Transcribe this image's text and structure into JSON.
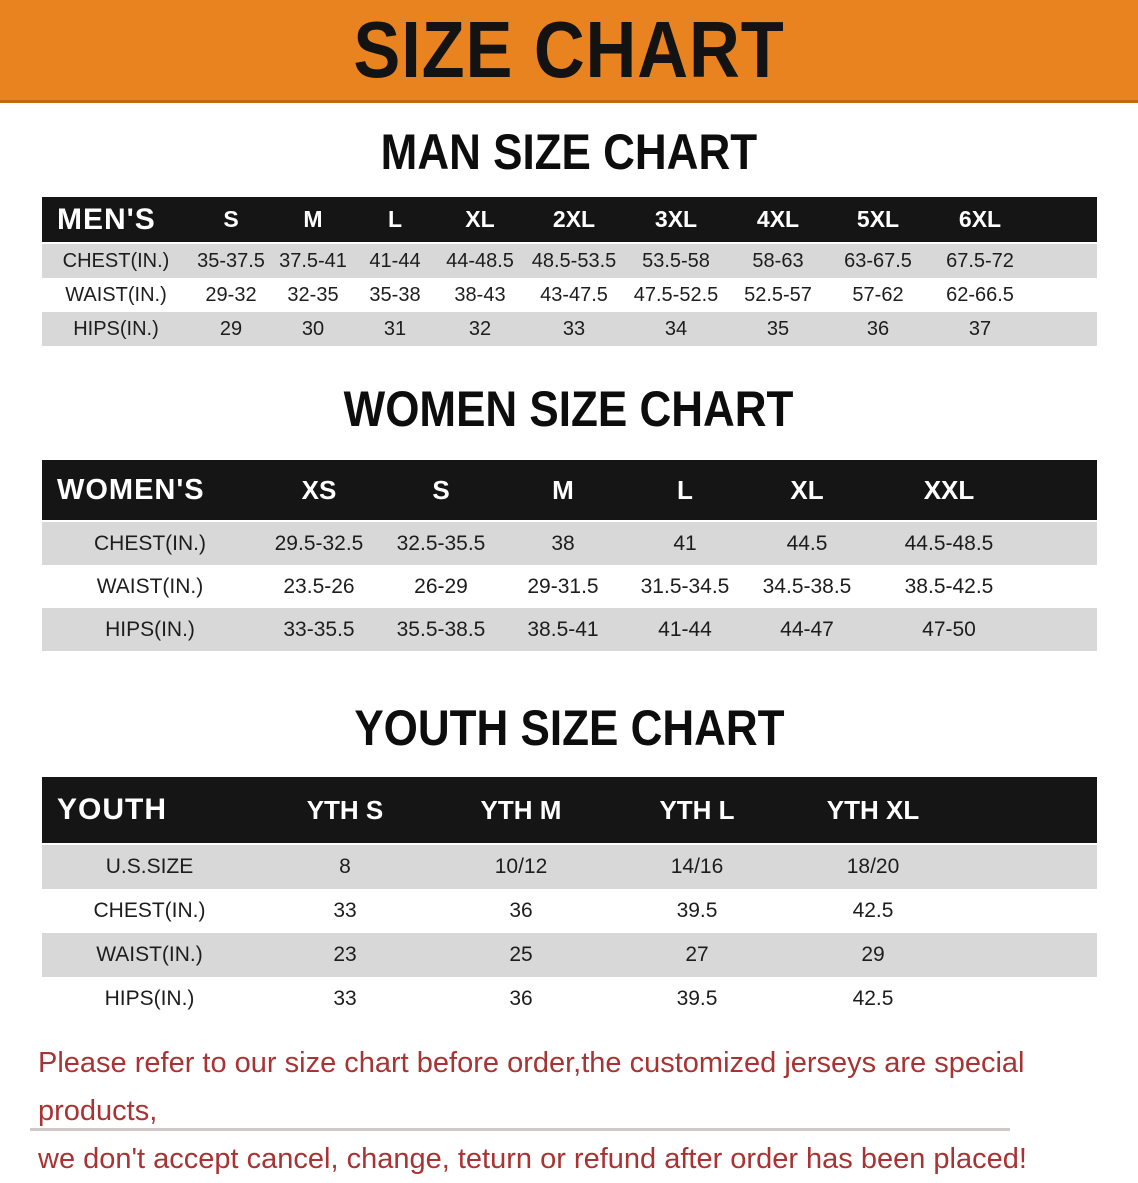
{
  "banner": {
    "title": "SIZE CHART"
  },
  "colors": {
    "banner_bg": "#E8831F",
    "banner_edge": "#C4670E",
    "header_bar": "#151515",
    "row_shade": "#D8D8D8",
    "disclaimer_text": "#A93333"
  },
  "sections": [
    {
      "heading": "MAN SIZE CHART",
      "table": {
        "header": [
          "MEN'S",
          "S",
          "M",
          "L",
          "XL",
          "2XL",
          "3XL",
          "4XL",
          "5XL",
          "6XL"
        ],
        "rows": [
          [
            "CHEST(IN.)",
            "35-37.5",
            "37.5-41",
            "41-44",
            "44-48.5",
            "48.5-53.5",
            "53.5-58",
            "58-63",
            "63-67.5",
            "67.5-72"
          ],
          [
            "WAIST(IN.)",
            "29-32",
            "32-35",
            "35-38",
            "38-43",
            "43-47.5",
            "47.5-52.5",
            "52.5-57",
            "57-62",
            "62-66.5"
          ],
          [
            "HIPS(IN.)",
            "29",
            "30",
            "31",
            "32",
            "33",
            "34",
            "35",
            "36",
            "37"
          ]
        ]
      }
    },
    {
      "heading": "WOMEN SIZE CHART",
      "table": {
        "header": [
          "WOMEN'S",
          "XS",
          "S",
          "M",
          "L",
          "XL",
          "XXL"
        ],
        "rows": [
          [
            "CHEST(IN.)",
            "29.5-32.5",
            "32.5-35.5",
            "38",
            "41",
            "44.5",
            "44.5-48.5"
          ],
          [
            "WAIST(IN.)",
            "23.5-26",
            "26-29",
            "29-31.5",
            "31.5-34.5",
            "34.5-38.5",
            "38.5-42.5"
          ],
          [
            "HIPS(IN.)",
            "33-35.5",
            "35.5-38.5",
            "38.5-41",
            "41-44",
            "44-47",
            "47-50"
          ]
        ]
      }
    },
    {
      "heading": "YOUTH SIZE CHART",
      "table": {
        "header": [
          "YOUTH",
          "YTH S",
          "YTH M",
          "YTH L",
          "YTH XL"
        ],
        "rows": [
          [
            "U.S.SIZE",
            "8",
            "10/12",
            "14/16",
            "18/20"
          ],
          [
            "CHEST(IN.)",
            "33",
            "36",
            "39.5",
            "42.5"
          ],
          [
            "WAIST(IN.)",
            "23",
            "25",
            "27",
            "29"
          ],
          [
            "HIPS(IN.)",
            "33",
            "36",
            "39.5",
            "42.5"
          ]
        ]
      }
    }
  ],
  "footer": {
    "line1": "Please refer to our size chart before order,the customized jerseys are special products,",
    "line2": "we don't accept cancel, change, teturn or refund after order has been placed!"
  }
}
